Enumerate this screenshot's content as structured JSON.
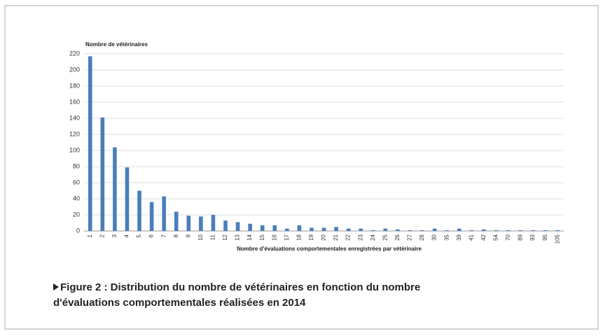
{
  "chart_data": {
    "type": "bar",
    "ylabel": "Nombre de vétérinaires",
    "xlabel": "Nombre d'évaluations comportementales enregistrées par vétérinaire",
    "categories": [
      "1",
      "2",
      "3",
      "4",
      "5",
      "6",
      "7",
      "8",
      "9",
      "10",
      "11",
      "12",
      "13",
      "14",
      "15",
      "16",
      "17",
      "18",
      "19",
      "20",
      "21",
      "22",
      "23",
      "24",
      "25",
      "26",
      "27",
      "28",
      "30",
      "35",
      "39",
      "41",
      "42",
      "54",
      "70",
      "89",
      "93",
      "95",
      "105"
    ],
    "values": [
      217,
      141,
      104,
      79,
      50,
      36,
      43,
      24,
      19,
      18,
      20,
      13,
      11,
      9,
      7,
      7,
      3,
      7,
      4,
      4,
      5,
      3,
      3,
      1,
      3,
      2,
      1,
      1,
      3,
      1,
      3,
      1,
      2,
      1,
      1,
      1,
      1,
      1,
      1
    ],
    "color": "#4a7ebb",
    "ylim": [
      0,
      220
    ],
    "yticks": [
      0,
      20,
      40,
      60,
      80,
      100,
      120,
      140,
      160,
      180,
      200,
      220
    ],
    "grid": true
  },
  "caption": [
    "Figure 2 : Distribution du nombre de vétérinaires en fonction du nombre",
    "d'évaluations comportementales réalisées en 2014"
  ]
}
